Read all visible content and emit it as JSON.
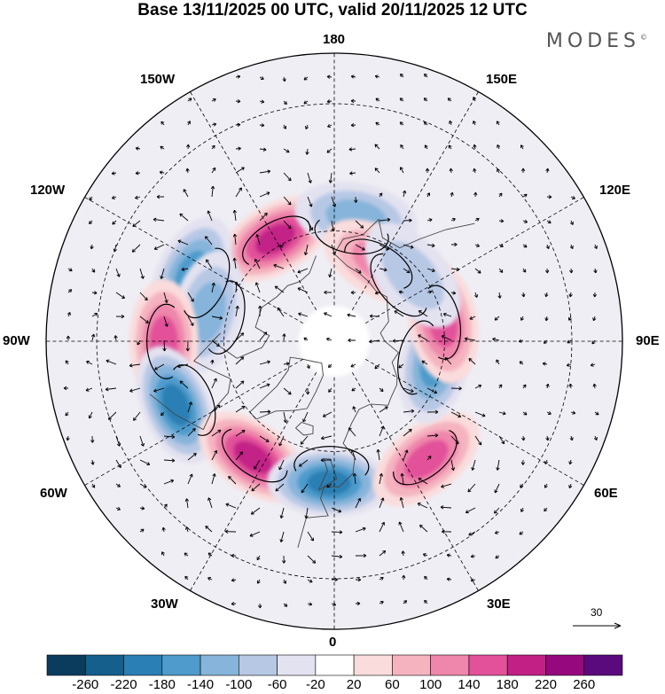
{
  "title": "Base 13/11/2025 00 UTC, valid 20/11/2025 12 UTC",
  "brand": "MODES",
  "brand_mark": "©",
  "longitude_labels": {
    "n180": "180",
    "w150": "150W",
    "e150": "150E",
    "w120": "120W",
    "e120": "120E",
    "w90": "90W",
    "e90": "90E",
    "w60": "60W",
    "e60": "60E",
    "w30": "30W",
    "e30": "30E",
    "s0": "0"
  },
  "reference_vector": "30",
  "colorbar": {
    "colors": [
      "#0b3c5e",
      "#145f8c",
      "#2a7fb4",
      "#4e9bcc",
      "#86b4da",
      "#b7c8e5",
      "#e3e2f0",
      "#ffffff",
      "#fadcdc",
      "#f5b3c0",
      "#ef86ab",
      "#e2519a",
      "#c32086",
      "#96097e",
      "#5a0a7c"
    ],
    "ticks": [
      "-260",
      "-220",
      "-180",
      "-140",
      "-100",
      "-60",
      "-20",
      "20",
      "60",
      "100",
      "140",
      "180",
      "220",
      "260"
    ]
  },
  "colors": {
    "land_outline": "#444444",
    "grid": "#000000",
    "circle": "#000000"
  },
  "anomaly_centers": [
    {
      "name": "high-alaska",
      "lon": -150,
      "lat": 58,
      "value": 190
    },
    {
      "name": "low-bering-west",
      "lon": 170,
      "lat": 56,
      "value": -120
    },
    {
      "name": "high-east-siberia-north",
      "lon": 150,
      "lat": 65,
      "value": 130
    },
    {
      "name": "low-canada-west",
      "lon": -115,
      "lat": 48,
      "value": -140
    },
    {
      "name": "low-canada-north",
      "lon": -103,
      "lat": 55,
      "value": -110
    },
    {
      "name": "high-canada-east",
      "lon": -90,
      "lat": 45,
      "value": 170
    },
    {
      "name": "low-great-lakes",
      "lon": -68,
      "lat": 45,
      "value": -190
    },
    {
      "name": "high-atlantic",
      "lon": -35,
      "lat": 52,
      "value": 210
    },
    {
      "name": "low-norway",
      "lon": -2,
      "lat": 52,
      "value": -200
    },
    {
      "name": "high-west-russia",
      "lon": 38,
      "lat": 50,
      "value": 160
    },
    {
      "name": "low-ural",
      "lon": 78,
      "lat": 62,
      "value": -150
    },
    {
      "name": "high-central-siberia",
      "lon": 100,
      "lat": 60,
      "value": 150
    },
    {
      "name": "low-east-siberia",
      "lon": 130,
      "lat": 62,
      "value": -80
    }
  ]
}
